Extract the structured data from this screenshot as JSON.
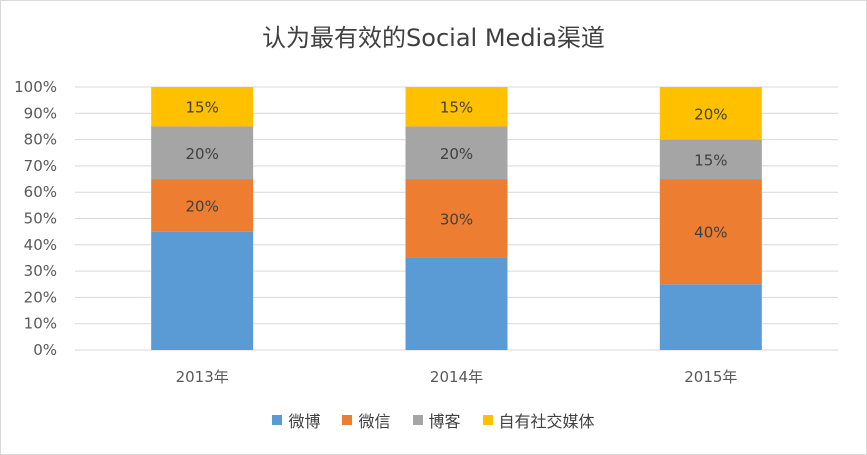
{
  "chart_data": {
    "type": "bar",
    "stacked": true,
    "percent": true,
    "title": "认为最有效的Social Media渠道",
    "categories": [
      "2013年",
      "2014年",
      "2015年"
    ],
    "series": [
      {
        "name": "微博",
        "values": [
          45,
          35,
          25
        ],
        "color": "#5b9bd5",
        "labels": [
          "",
          "",
          ""
        ]
      },
      {
        "name": "微信",
        "values": [
          20,
          30,
          40
        ],
        "color": "#ed7d31",
        "labels": [
          "20%",
          "30%",
          "40%"
        ]
      },
      {
        "name": "博客",
        "values": [
          20,
          20,
          15
        ],
        "color": "#a5a5a5",
        "labels": [
          "20%",
          "20%",
          "15%"
        ]
      },
      {
        "name": "自有社交媒体",
        "values": [
          15,
          15,
          20
        ],
        "color": "#ffc000",
        "labels": [
          "15%",
          "15%",
          "20%"
        ]
      }
    ],
    "ylim": [
      0,
      100
    ],
    "yticks": [
      "0%",
      "10%",
      "20%",
      "30%",
      "40%",
      "50%",
      "60%",
      "70%",
      "80%",
      "90%",
      "100%"
    ],
    "grid": true,
    "legend": "bottom"
  }
}
